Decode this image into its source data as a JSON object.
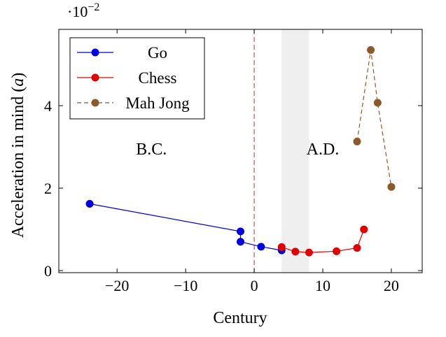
{
  "chart_data": {
    "type": "line",
    "xlabel": "Century",
    "ylabel": "Acceleration in mind (a)",
    "ylabel_main": "Acceleration in mind (",
    "ylabel_var": "a",
    "ylabel_close": ")",
    "y_scale_base": "·10",
    "y_scale_exp": "−2",
    "xlim": [
      -28.5,
      24.5
    ],
    "ylim": [
      -0.05,
      5.85
    ],
    "x_ticks": [
      {
        "value": -20,
        "label": "−20"
      },
      {
        "value": -10,
        "label": "−10"
      },
      {
        "value": 0,
        "label": "0"
      },
      {
        "value": 10,
        "label": "10"
      },
      {
        "value": 20,
        "label": "20"
      }
    ],
    "y_ticks": [
      {
        "value": 0,
        "label": "0"
      },
      {
        "value": 2,
        "label": "2"
      },
      {
        "value": 4,
        "label": "4"
      }
    ],
    "legend_position": "top-left",
    "shaded_band": {
      "x_from": 4,
      "x_to": 8,
      "color": "#efefef"
    },
    "vertical_line": {
      "x": 0,
      "color": "#b03040",
      "style": "dashed"
    },
    "annotations": [
      {
        "text": "B.C.",
        "x": -15,
        "y": 2.95
      },
      {
        "text": "A.D.",
        "x": 10,
        "y": 2.95
      }
    ],
    "series": [
      {
        "name": "Go",
        "color": "#0000e0",
        "line_style": "solid",
        "points": [
          [
            -24,
            1.62
          ],
          [
            -2,
            0.95
          ],
          [
            -2,
            0.7
          ],
          [
            1,
            0.58
          ],
          [
            4,
            0.49
          ]
        ]
      },
      {
        "name": "Chess",
        "color": "#e00000",
        "line_style": "solid",
        "points": [
          [
            4,
            0.57
          ],
          [
            6,
            0.46
          ],
          [
            8,
            0.44
          ],
          [
            12,
            0.47
          ],
          [
            15,
            0.55
          ],
          [
            16,
            1.0
          ]
        ]
      },
      {
        "name": "Mah Jong",
        "color": "#8b5a2b",
        "line_style": "dashed",
        "points": [
          [
            15,
            3.13
          ],
          [
            17,
            5.35
          ],
          [
            18,
            4.07
          ],
          [
            20,
            2.03
          ]
        ]
      }
    ]
  }
}
